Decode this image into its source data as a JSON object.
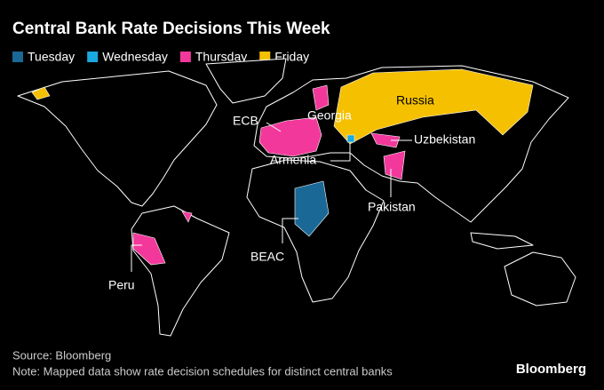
{
  "title": "Central Bank Rate Decisions This Week",
  "legend": [
    {
      "name": "Tuesday",
      "color": "#1a6896"
    },
    {
      "name": "Wednesday",
      "color": "#19a8e0"
    },
    {
      "name": "Thursday",
      "color": "#f2399b"
    },
    {
      "name": "Friday",
      "color": "#f5c000"
    }
  ],
  "labels": [
    "Russia",
    "Georgia",
    "ECB",
    "Uzbekistan",
    "Armenia",
    "Pakistan",
    "BEAC",
    "Peru"
  ],
  "source": "Source: Bloomberg",
  "note": "Note: Mapped data show rate decision schedules for distinct central banks",
  "brand": "Bloomberg"
}
